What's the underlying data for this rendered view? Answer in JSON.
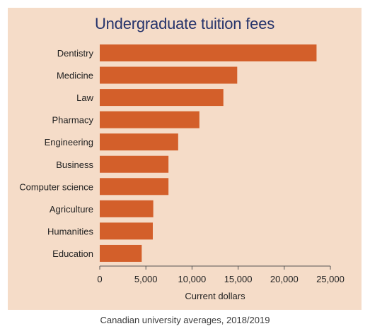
{
  "chart_data": {
    "type": "bar",
    "orientation": "horizontal",
    "title": "Undergraduate tuition fees",
    "xlabel": "Current dollars",
    "ylabel": "",
    "caption": "Canadian university averages, 2018/2019",
    "categories": [
      "Dentistry",
      "Medicine",
      "Law",
      "Pharmacy",
      "Engineering",
      "Business",
      "Computer science",
      "Agriculture",
      "Humanities",
      "Education"
    ],
    "values": [
      23500,
      14900,
      13400,
      10800,
      8500,
      7450,
      7450,
      5800,
      5750,
      4550
    ],
    "xlim": [
      0,
      25000
    ],
    "xticks": [
      0,
      5000,
      10000,
      15000,
      20000,
      25000
    ],
    "xtick_labels": [
      "0",
      "5,000",
      "10,000",
      "15,000",
      "20,000",
      "25,000"
    ],
    "grid": false,
    "legend": "none",
    "colors": {
      "bar": "#d35f2a",
      "panel": "#f5dcc8",
      "title": "#25336b",
      "axis": "#555555",
      "text": "#222222"
    }
  }
}
